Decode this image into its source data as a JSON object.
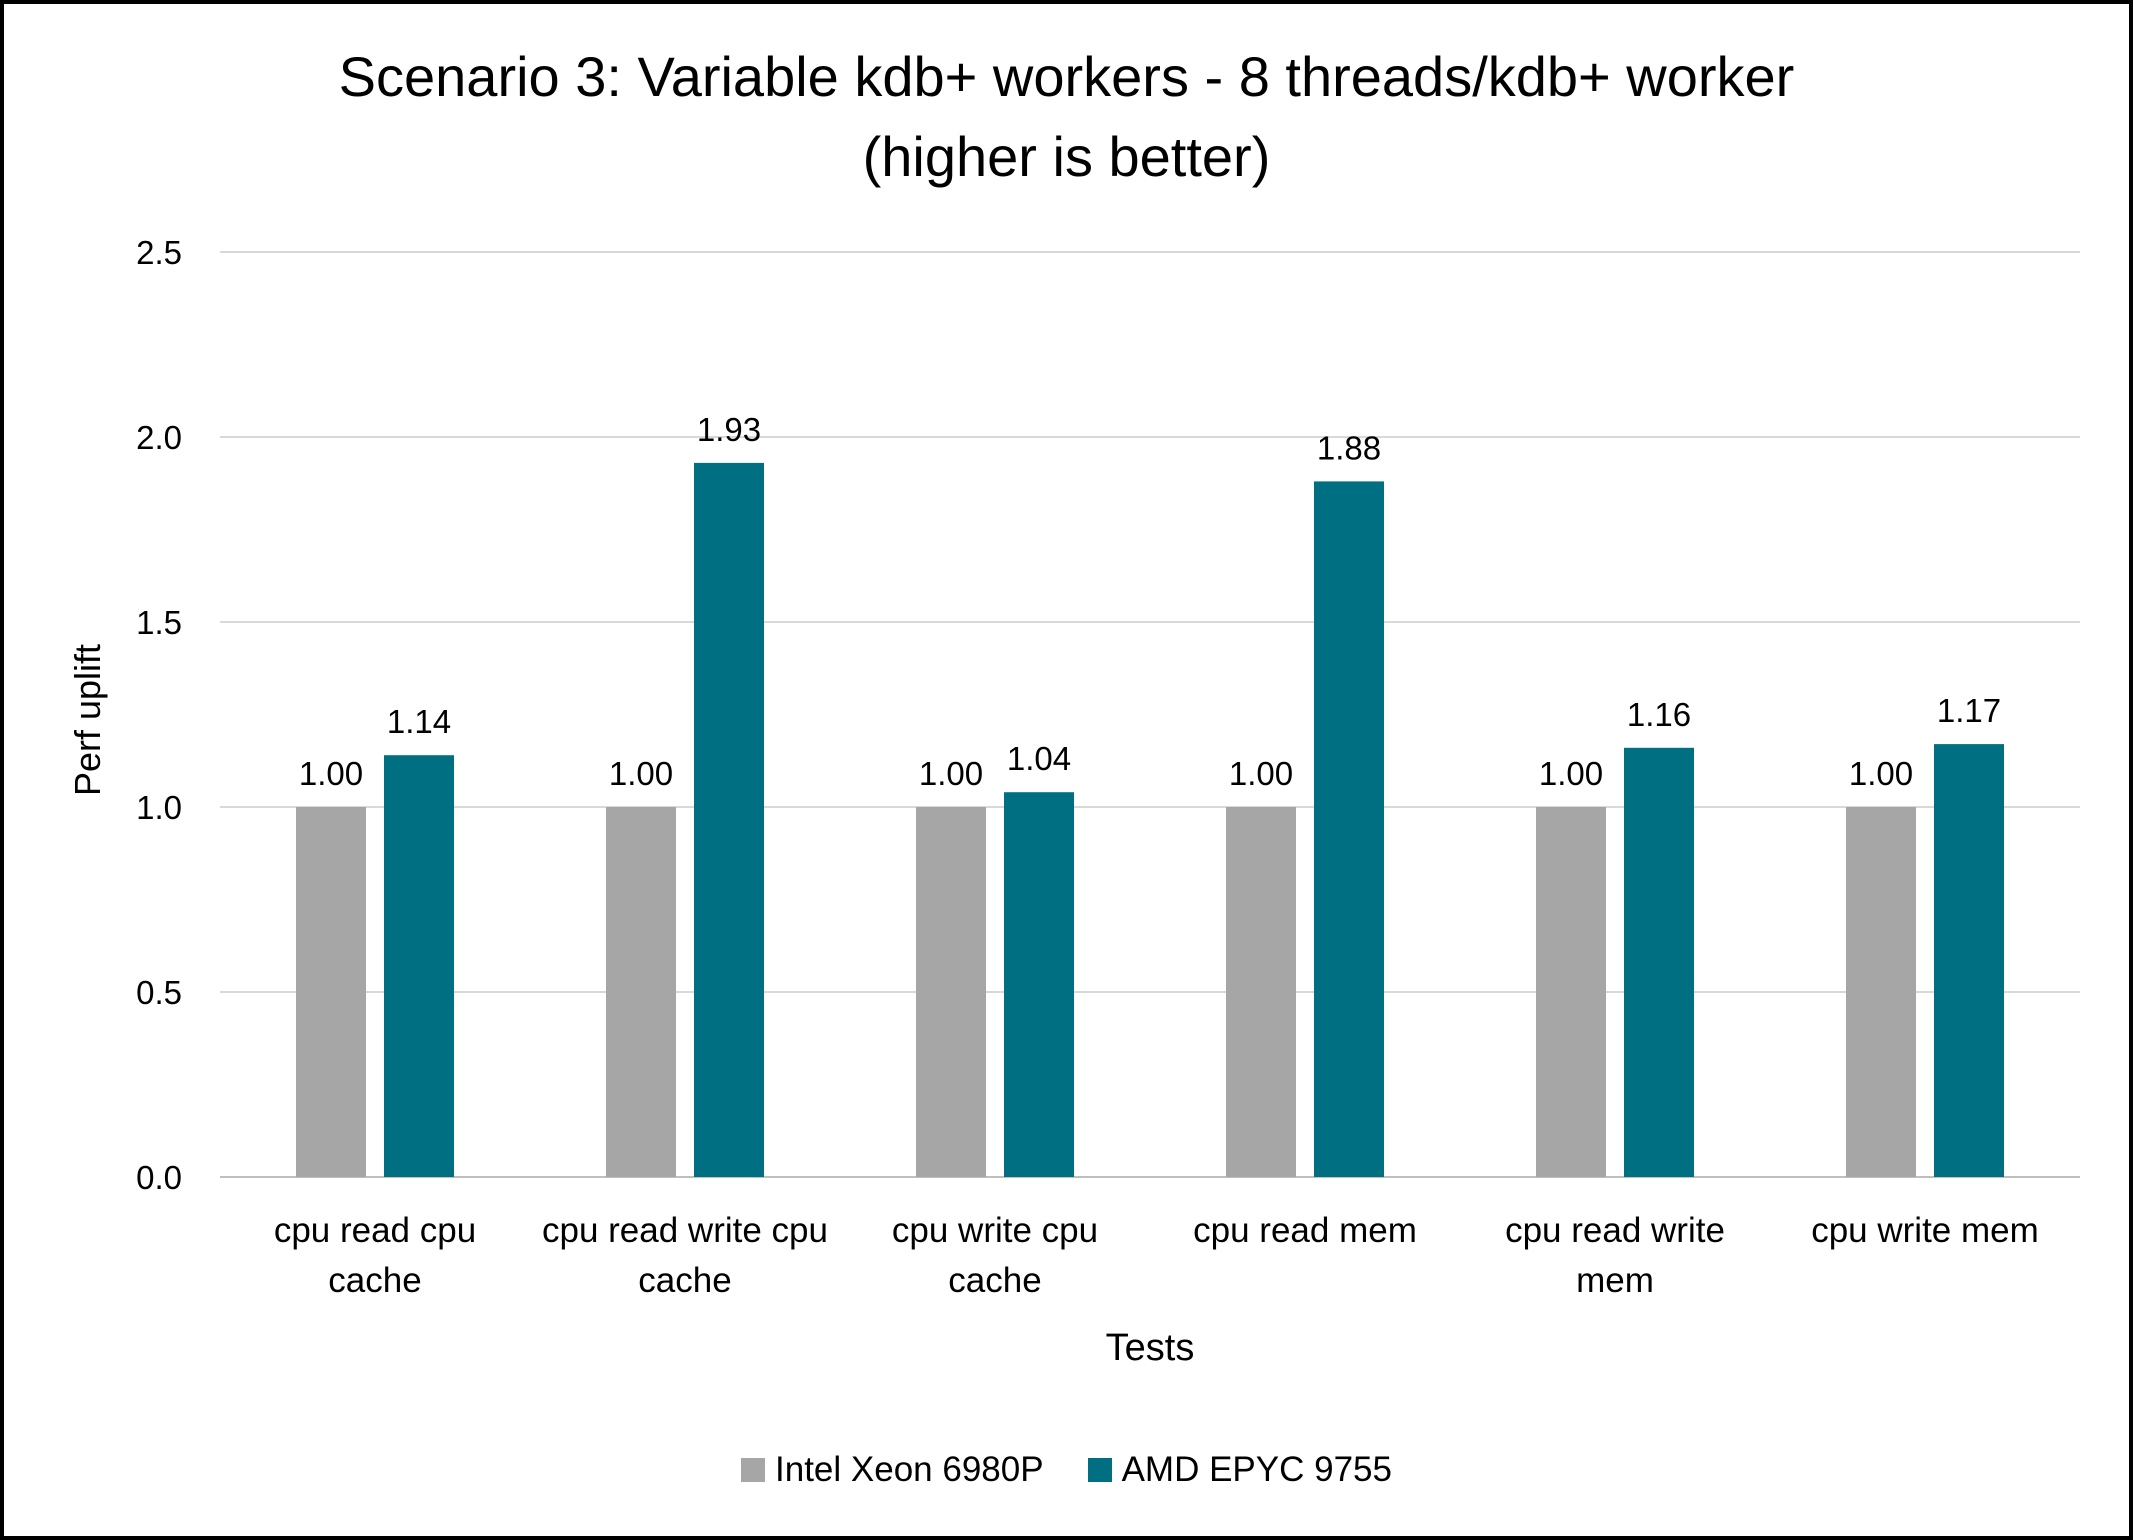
{
  "chart_data": {
    "type": "bar",
    "title_lines": [
      "Scenario 3: Variable kdb+ workers - 8 threads/kdb+ worker",
      "(higher is better)"
    ],
    "xlabel": "Tests",
    "ylabel": "Perf uplift",
    "ylim": [
      0,
      2.5
    ],
    "yticks": [
      "0.0",
      "0.5",
      "1.0",
      "1.5",
      "2.0",
      "2.5"
    ],
    "grid": true,
    "legend_position": "bottom",
    "categories": [
      [
        "cpu read cpu",
        "cache"
      ],
      [
        "cpu read write cpu",
        "cache"
      ],
      [
        "cpu write cpu",
        "cache"
      ],
      [
        "cpu read mem"
      ],
      [
        "cpu read write",
        "mem"
      ],
      [
        "cpu write mem"
      ]
    ],
    "series": [
      {
        "name": "Intel Xeon 6980P",
        "color": "#a6a6a6",
        "values": [
          1.0,
          1.0,
          1.0,
          1.0,
          1.0,
          1.0
        ],
        "labels": [
          "1.00",
          "1.00",
          "1.00",
          "1.00",
          "1.00",
          "1.00"
        ]
      },
      {
        "name": "AMD EPYC 9755",
        "color": "#006f82",
        "values": [
          1.14,
          1.93,
          1.04,
          1.88,
          1.16,
          1.17
        ],
        "labels": [
          "1.14",
          "1.93",
          "1.04",
          "1.88",
          "1.16",
          "1.17"
        ]
      }
    ]
  }
}
